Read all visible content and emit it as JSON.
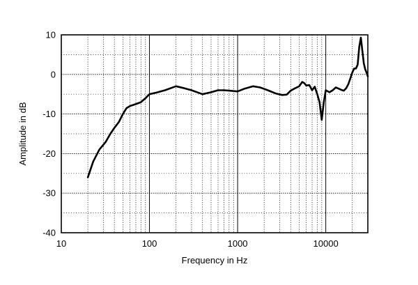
{
  "chart_data": {
    "type": "line",
    "xlabel": "Frequency in Hz",
    "ylabel": "Amplitude in dB",
    "x_scale": "log",
    "xlim": [
      10,
      30000
    ],
    "ylim": [
      -40,
      10
    ],
    "grid": true,
    "x_ticks": [
      {
        "value": 10,
        "label": "10"
      },
      {
        "value": 100,
        "label": "100"
      },
      {
        "value": 1000,
        "label": "1000"
      },
      {
        "value": 10000,
        "label": "10000"
      }
    ],
    "y_ticks": [
      {
        "value": 10,
        "label": "10"
      },
      {
        "value": 0,
        "label": "0"
      },
      {
        "value": -10,
        "label": "-10"
      },
      {
        "value": -20,
        "label": "-20"
      },
      {
        "value": -30,
        "label": "-30"
      },
      {
        "value": -40,
        "label": "-40"
      }
    ],
    "series": [
      {
        "x": [
          20,
          23,
          27,
          32,
          36,
          40,
          45,
          50,
          55,
          60,
          70,
          80,
          90,
          100,
          120,
          150,
          200,
          250,
          300,
          400,
          500,
          600,
          700,
          800,
          1000,
          1200,
          1500,
          1800,
          2200,
          2700,
          3200,
          3600,
          4000,
          4400,
          5000,
          5400,
          5700,
          6000,
          6500,
          7000,
          7500,
          8000,
          8500,
          9000,
          9500,
          10000,
          11000,
          12000,
          13000,
          14000,
          15000,
          16000,
          17000,
          18000,
          19000,
          20000,
          21000,
          22000,
          23000,
          24000,
          25000,
          26000,
          27000,
          28000,
          29000,
          30000
        ],
        "y": [
          -26,
          -22,
          -19,
          -17,
          -15,
          -13.5,
          -12,
          -10,
          -8.5,
          -8,
          -7.5,
          -7,
          -6,
          -5,
          -4.6,
          -4,
          -3,
          -3.5,
          -4,
          -5,
          -4.5,
          -4,
          -4,
          -4.1,
          -4.3,
          -3.6,
          -3,
          -3.3,
          -4,
          -4.8,
          -5.2,
          -5.1,
          -4.1,
          -3.6,
          -3,
          -1.9,
          -2.2,
          -2.8,
          -2.7,
          -4,
          -3.1,
          -5,
          -7,
          -11.5,
          -7,
          -4,
          -4.5,
          -4,
          -3.3,
          -3.6,
          -3.9,
          -4.1,
          -3.5,
          -2.5,
          -1,
          0.5,
          1.5,
          1.5,
          2.5,
          7,
          9.3,
          6,
          2.8,
          1.3,
          0.5,
          -0.5
        ]
      }
    ]
  }
}
